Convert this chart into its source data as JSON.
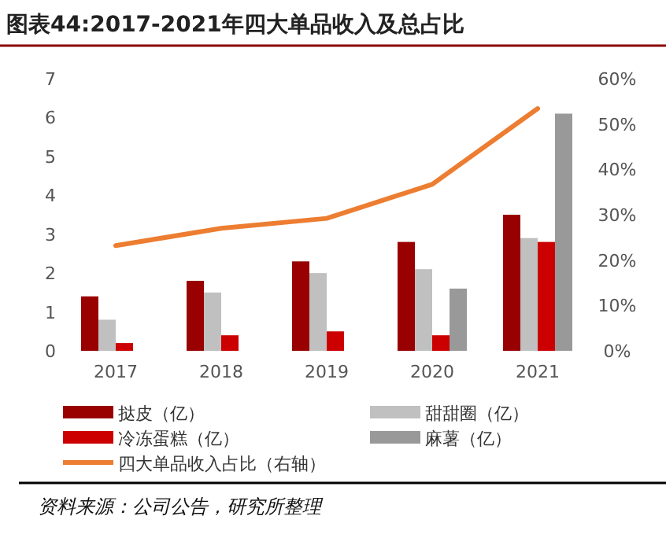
{
  "chart_data": {
    "type": "bar",
    "title": "图表44:2017-2021年四大单品收入及总占比",
    "categories": [
      "2017",
      "2018",
      "2019",
      "2020",
      "2021"
    ],
    "series": [
      {
        "name": "挞皮（亿）",
        "color": "#990000",
        "values": [
          1.4,
          1.8,
          2.3,
          2.8,
          3.5
        ]
      },
      {
        "name": "甜甜圈（亿）",
        "color": "#c0c0c0",
        "values": [
          0.8,
          1.5,
          2.0,
          2.1,
          2.9
        ]
      },
      {
        "name": "冷冻蛋糕（亿）",
        "color": "#cc0000",
        "values": [
          0.2,
          0.4,
          0.5,
          0.4,
          2.8
        ]
      },
      {
        "name": "麻薯（亿）",
        "color": "#999999",
        "values": [
          null,
          null,
          null,
          1.6,
          6.1
        ]
      },
      {
        "name": "四大单品收入占比（右轴）",
        "color": "#ed7d31",
        "type": "line",
        "axis": "y2",
        "values": [
          23.2,
          27.0,
          29.2,
          36.7,
          53.4
        ]
      }
    ],
    "ylim": [
      0,
      7
    ],
    "yticks": [
      0,
      1,
      2,
      3,
      4,
      5,
      6,
      7
    ],
    "y2lim": [
      0,
      60
    ],
    "y2ticks": [
      {
        "value": 0,
        "label": "0%"
      },
      {
        "value": 10,
        "label": "10%"
      },
      {
        "value": 20,
        "label": "20%"
      },
      {
        "value": 30,
        "label": "30%"
      },
      {
        "value": 40,
        "label": "40%"
      },
      {
        "value": 50,
        "label": "50%"
      },
      {
        "value": 60,
        "label": "60%"
      }
    ],
    "legend": "bottom",
    "annotations": [
      "资料来源：公司公告，研究所整理"
    ]
  }
}
